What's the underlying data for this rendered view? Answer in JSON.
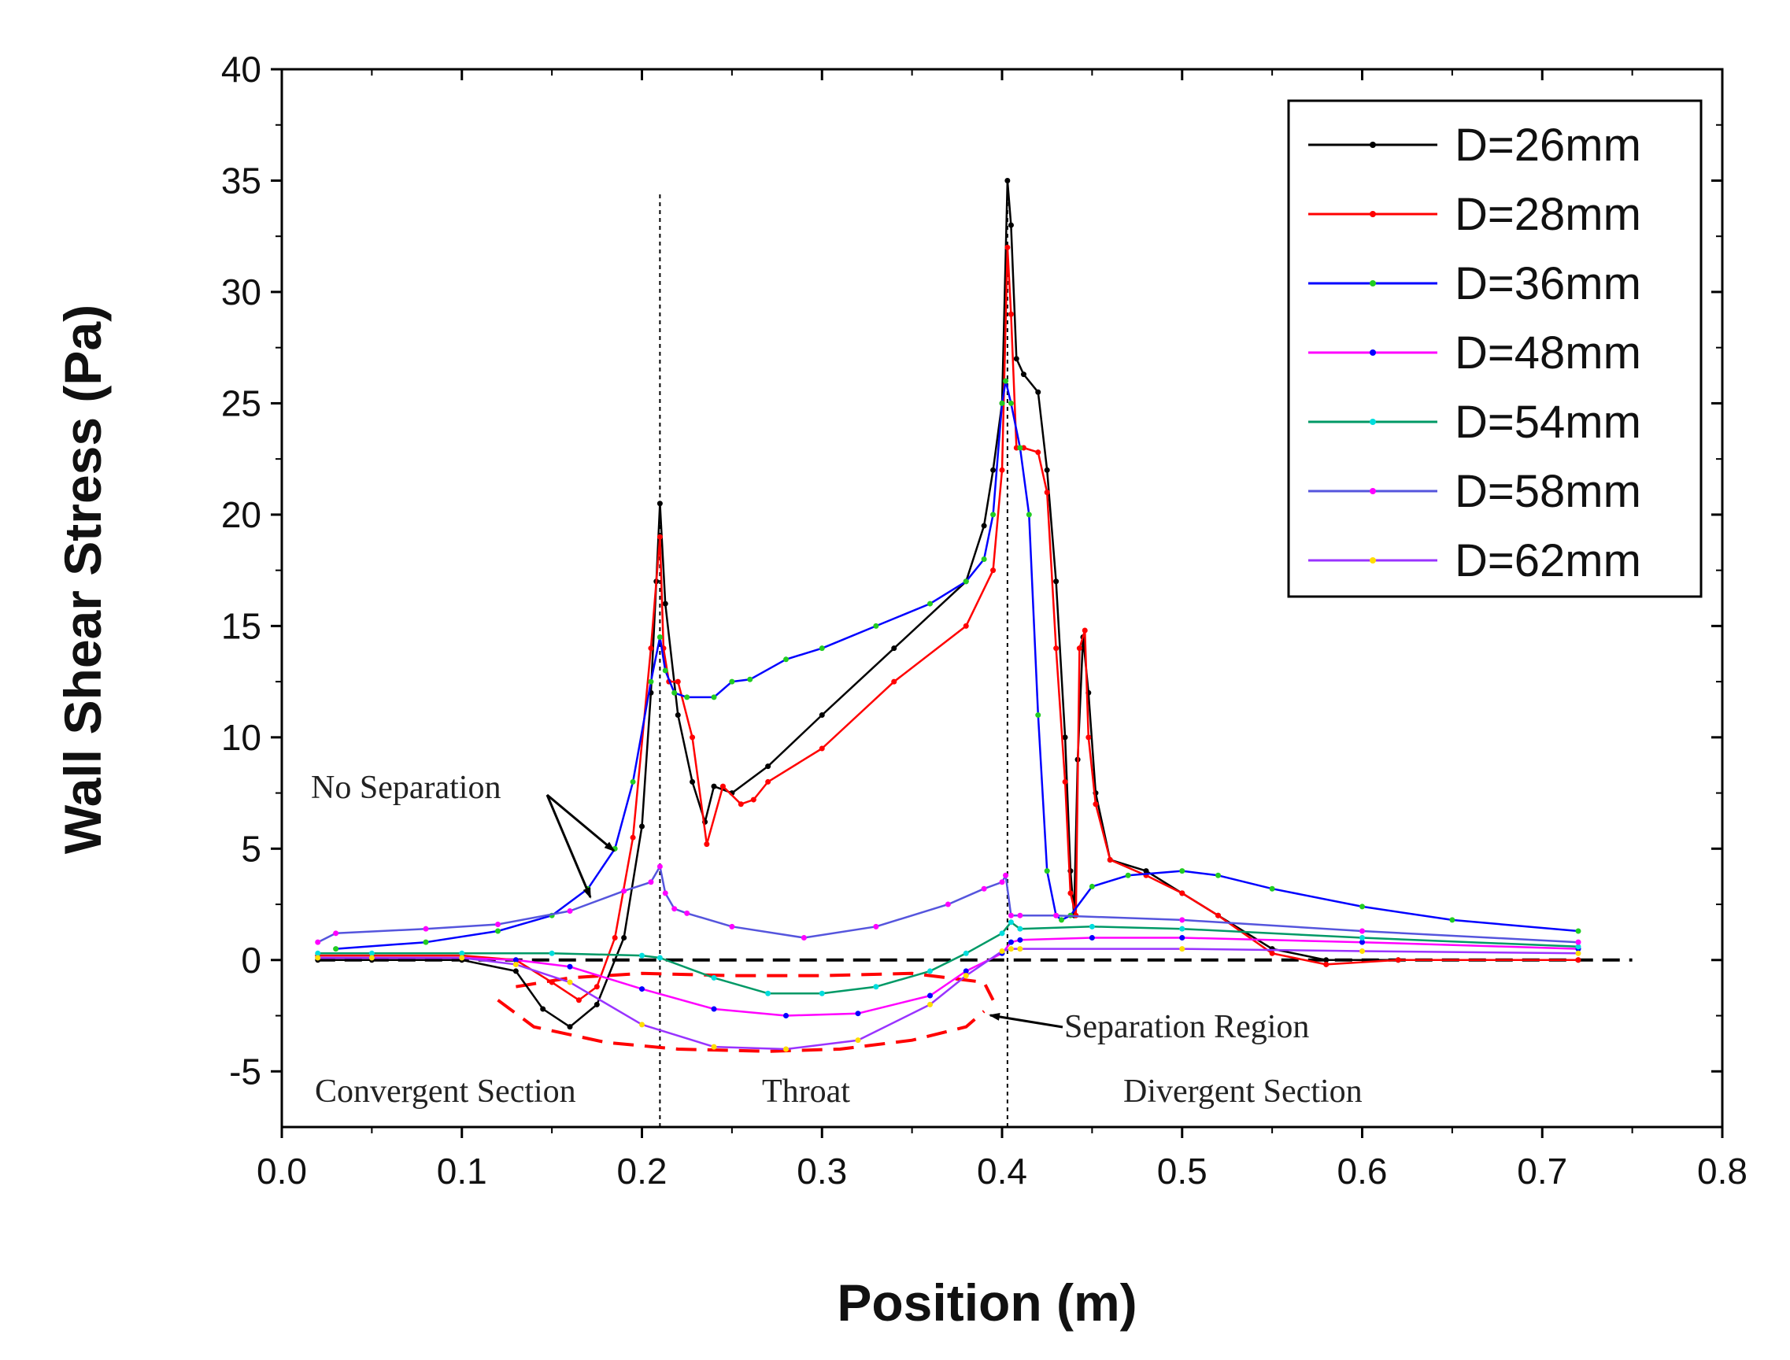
{
  "chart_data": {
    "type": "line",
    "title": "",
    "xlabel": "Position (m)",
    "ylabel": "Wall Shear Stress  (Pa)",
    "xlim": [
      0.0,
      0.8
    ],
    "ylim": [
      -7.5,
      40
    ],
    "xticks": [
      0.0,
      0.1,
      0.2,
      0.3,
      0.4,
      0.5,
      0.6,
      0.7,
      0.8
    ],
    "xtick_labels": [
      "0.0",
      "0.1",
      "0.2",
      "0.3",
      "0.4",
      "0.5",
      "0.6",
      "0.7",
      "0.8"
    ],
    "yticks": [
      -5,
      0,
      5,
      10,
      15,
      20,
      25,
      30,
      35,
      40
    ],
    "ytick_labels": [
      "-5",
      "0",
      "5",
      "10",
      "15",
      "20",
      "25",
      "30",
      "35",
      "40"
    ],
    "legend_position": "top-right",
    "series": [
      {
        "name": "D=26mm",
        "color": "#000000",
        "marker_color": "#000000",
        "x": [
          0.02,
          0.05,
          0.1,
          0.13,
          0.145,
          0.16,
          0.175,
          0.19,
          0.2,
          0.205,
          0.208,
          0.21,
          0.213,
          0.22,
          0.228,
          0.235,
          0.24,
          0.25,
          0.27,
          0.3,
          0.34,
          0.38,
          0.39,
          0.395,
          0.4,
          0.403,
          0.405,
          0.408,
          0.412,
          0.42,
          0.425,
          0.43,
          0.435,
          0.438,
          0.44,
          0.442,
          0.445,
          0.448,
          0.452,
          0.46,
          0.48,
          0.5,
          0.52,
          0.55,
          0.58,
          0.62,
          0.72
        ],
        "y": [
          0.0,
          0.0,
          0.0,
          -0.5,
          -2.2,
          -3.0,
          -2.0,
          1.0,
          6.0,
          12.0,
          17.0,
          20.5,
          16.0,
          11.0,
          8.0,
          6.2,
          7.8,
          7.5,
          8.7,
          11.0,
          14.0,
          17.0,
          19.5,
          22.0,
          25.0,
          35.0,
          33.0,
          27.0,
          26.3,
          25.5,
          22.0,
          17.0,
          10.0,
          4.0,
          2.0,
          9.0,
          14.5,
          12.0,
          7.5,
          4.5,
          4.0,
          3.0,
          2.0,
          0.5,
          0.0,
          0.0,
          0.0
        ]
      },
      {
        "name": "D=28mm",
        "color": "#ff0000",
        "marker_color": "#ff0000",
        "x": [
          0.02,
          0.05,
          0.1,
          0.13,
          0.15,
          0.165,
          0.175,
          0.185,
          0.195,
          0.205,
          0.21,
          0.212,
          0.215,
          0.22,
          0.228,
          0.236,
          0.245,
          0.255,
          0.262,
          0.27,
          0.3,
          0.34,
          0.38,
          0.395,
          0.4,
          0.403,
          0.405,
          0.408,
          0.412,
          0.42,
          0.425,
          0.43,
          0.435,
          0.438,
          0.441,
          0.443,
          0.446,
          0.448,
          0.452,
          0.46,
          0.48,
          0.5,
          0.52,
          0.55,
          0.58,
          0.62,
          0.72
        ],
        "y": [
          0.2,
          0.2,
          0.2,
          0.0,
          -1.0,
          -1.8,
          -1.2,
          1.0,
          5.5,
          14.0,
          19.0,
          14.0,
          12.5,
          12.5,
          10.0,
          5.2,
          7.8,
          7.0,
          7.2,
          8.0,
          9.5,
          12.5,
          15.0,
          17.5,
          22.0,
          32.0,
          29.0,
          23.0,
          23.0,
          22.8,
          21.0,
          14.0,
          8.0,
          3.0,
          2.0,
          14.0,
          14.8,
          10.0,
          7.0,
          4.5,
          3.8,
          3.0,
          2.0,
          0.3,
          -0.2,
          0.0,
          0.0
        ]
      },
      {
        "name": "D=36mm",
        "color": "#0000ff",
        "marker_color": "#22cc22",
        "x": [
          0.03,
          0.08,
          0.12,
          0.15,
          0.17,
          0.185,
          0.195,
          0.205,
          0.21,
          0.213,
          0.218,
          0.225,
          0.24,
          0.25,
          0.26,
          0.28,
          0.3,
          0.33,
          0.36,
          0.38,
          0.39,
          0.395,
          0.4,
          0.402,
          0.405,
          0.41,
          0.415,
          0.42,
          0.425,
          0.43,
          0.433,
          0.438,
          0.45,
          0.47,
          0.5,
          0.52,
          0.55,
          0.6,
          0.65,
          0.72
        ],
        "y": [
          0.5,
          0.8,
          1.3,
          2.0,
          3.2,
          5.0,
          8.0,
          12.5,
          14.5,
          13.0,
          12.0,
          11.8,
          11.8,
          12.5,
          12.6,
          13.5,
          14.0,
          15.0,
          16.0,
          17.0,
          18.0,
          20.0,
          25.0,
          26.0,
          25.0,
          23.0,
          20.0,
          11.0,
          4.0,
          2.0,
          1.8,
          2.0,
          3.3,
          3.8,
          4.0,
          3.8,
          3.2,
          2.4,
          1.8,
          1.3
        ]
      },
      {
        "name": "D=48mm",
        "color": "#ff00ff",
        "marker_color": "#0000ff",
        "x": [
          0.02,
          0.05,
          0.1,
          0.13,
          0.16,
          0.2,
          0.24,
          0.28,
          0.32,
          0.36,
          0.38,
          0.4,
          0.405,
          0.41,
          0.45,
          0.5,
          0.6,
          0.72
        ],
        "y": [
          0.1,
          0.1,
          0.1,
          0.0,
          -0.3,
          -1.3,
          -2.2,
          -2.5,
          -2.4,
          -1.6,
          -0.5,
          0.3,
          0.8,
          0.9,
          1.0,
          1.0,
          0.8,
          0.5
        ]
      },
      {
        "name": "D=54mm",
        "color": "#009966",
        "marker_color": "#00dddd",
        "x": [
          0.02,
          0.05,
          0.1,
          0.15,
          0.2,
          0.21,
          0.24,
          0.27,
          0.3,
          0.33,
          0.36,
          0.38,
          0.4,
          0.405,
          0.41,
          0.45,
          0.5,
          0.6,
          0.72
        ],
        "y": [
          0.3,
          0.3,
          0.3,
          0.3,
          0.2,
          0.1,
          -0.8,
          -1.5,
          -1.5,
          -1.2,
          -0.5,
          0.3,
          1.2,
          1.7,
          1.4,
          1.5,
          1.4,
          1.0,
          0.6
        ]
      },
      {
        "name": "D=58mm",
        "color": "#5555dd",
        "marker_color": "#ff00ff",
        "x": [
          0.02,
          0.03,
          0.08,
          0.12,
          0.16,
          0.19,
          0.205,
          0.21,
          0.213,
          0.218,
          0.225,
          0.25,
          0.29,
          0.33,
          0.37,
          0.39,
          0.4,
          0.402,
          0.405,
          0.41,
          0.43,
          0.5,
          0.6,
          0.72
        ],
        "y": [
          0.8,
          1.2,
          1.4,
          1.6,
          2.2,
          3.1,
          3.5,
          4.2,
          3.0,
          2.3,
          2.1,
          1.5,
          1.0,
          1.5,
          2.5,
          3.2,
          3.5,
          3.8,
          2.0,
          2.0,
          2.0,
          1.8,
          1.3,
          0.8
        ]
      },
      {
        "name": "D=62mm",
        "color": "#9933ff",
        "marker_color": "#ffdd00",
        "x": [
          0.02,
          0.05,
          0.1,
          0.13,
          0.16,
          0.2,
          0.24,
          0.28,
          0.32,
          0.36,
          0.38,
          0.4,
          0.405,
          0.41,
          0.5,
          0.6,
          0.72
        ],
        "y": [
          0.1,
          0.1,
          0.1,
          -0.2,
          -1.0,
          -2.9,
          -3.9,
          -4.0,
          -3.6,
          -2.0,
          -0.7,
          0.4,
          0.5,
          0.5,
          0.5,
          0.4,
          0.3
        ]
      }
    ],
    "reference_lines": [
      {
        "type": "horizontal",
        "y": 0,
        "style": "dashed",
        "color": "#000000",
        "x_from": 0.02,
        "x_to": 0.75
      },
      {
        "type": "vertical",
        "x": 0.21,
        "style": "dotted",
        "color": "#000000",
        "y_from": -7.5,
        "y_to": 34.5
      },
      {
        "type": "vertical",
        "x": 0.403,
        "style": "dotted",
        "color": "#000000",
        "y_from": -7.5,
        "y_to": 35
      }
    ],
    "separation_outline": {
      "color": "#ff0000",
      "upper_x": [
        0.13,
        0.16,
        0.2,
        0.25,
        0.3,
        0.35,
        0.39,
        0.395
      ],
      "upper_y": [
        -1.2,
        -0.8,
        -0.6,
        -0.7,
        -0.7,
        -0.6,
        -1.0,
        -1.8
      ],
      "lower_x": [
        0.12,
        0.14,
        0.18,
        0.22,
        0.27,
        0.31,
        0.35,
        0.38,
        0.39
      ],
      "lower_y": [
        -1.8,
        -3.0,
        -3.7,
        -4.0,
        -4.1,
        -4.0,
        -3.6,
        -3.0,
        -2.3
      ]
    },
    "annotations": [
      {
        "text": "No Separation",
        "x": 0.075,
        "y": 7.8,
        "arrows_to": [
          [
            0.19,
            4.7
          ],
          [
            0.175,
            2.8
          ]
        ]
      },
      {
        "text": "Separation Region",
        "x": 0.435,
        "y": -3.0,
        "arrow_to": [
          0.395,
          -2.2
        ]
      },
      {
        "text": "Convergent Section",
        "x": 0.1,
        "y": -5.9
      },
      {
        "text": "Throat",
        "x": 0.31,
        "y": -5.9
      },
      {
        "text": "Divergent Section",
        "x": 0.55,
        "y": -5.9
      }
    ]
  }
}
